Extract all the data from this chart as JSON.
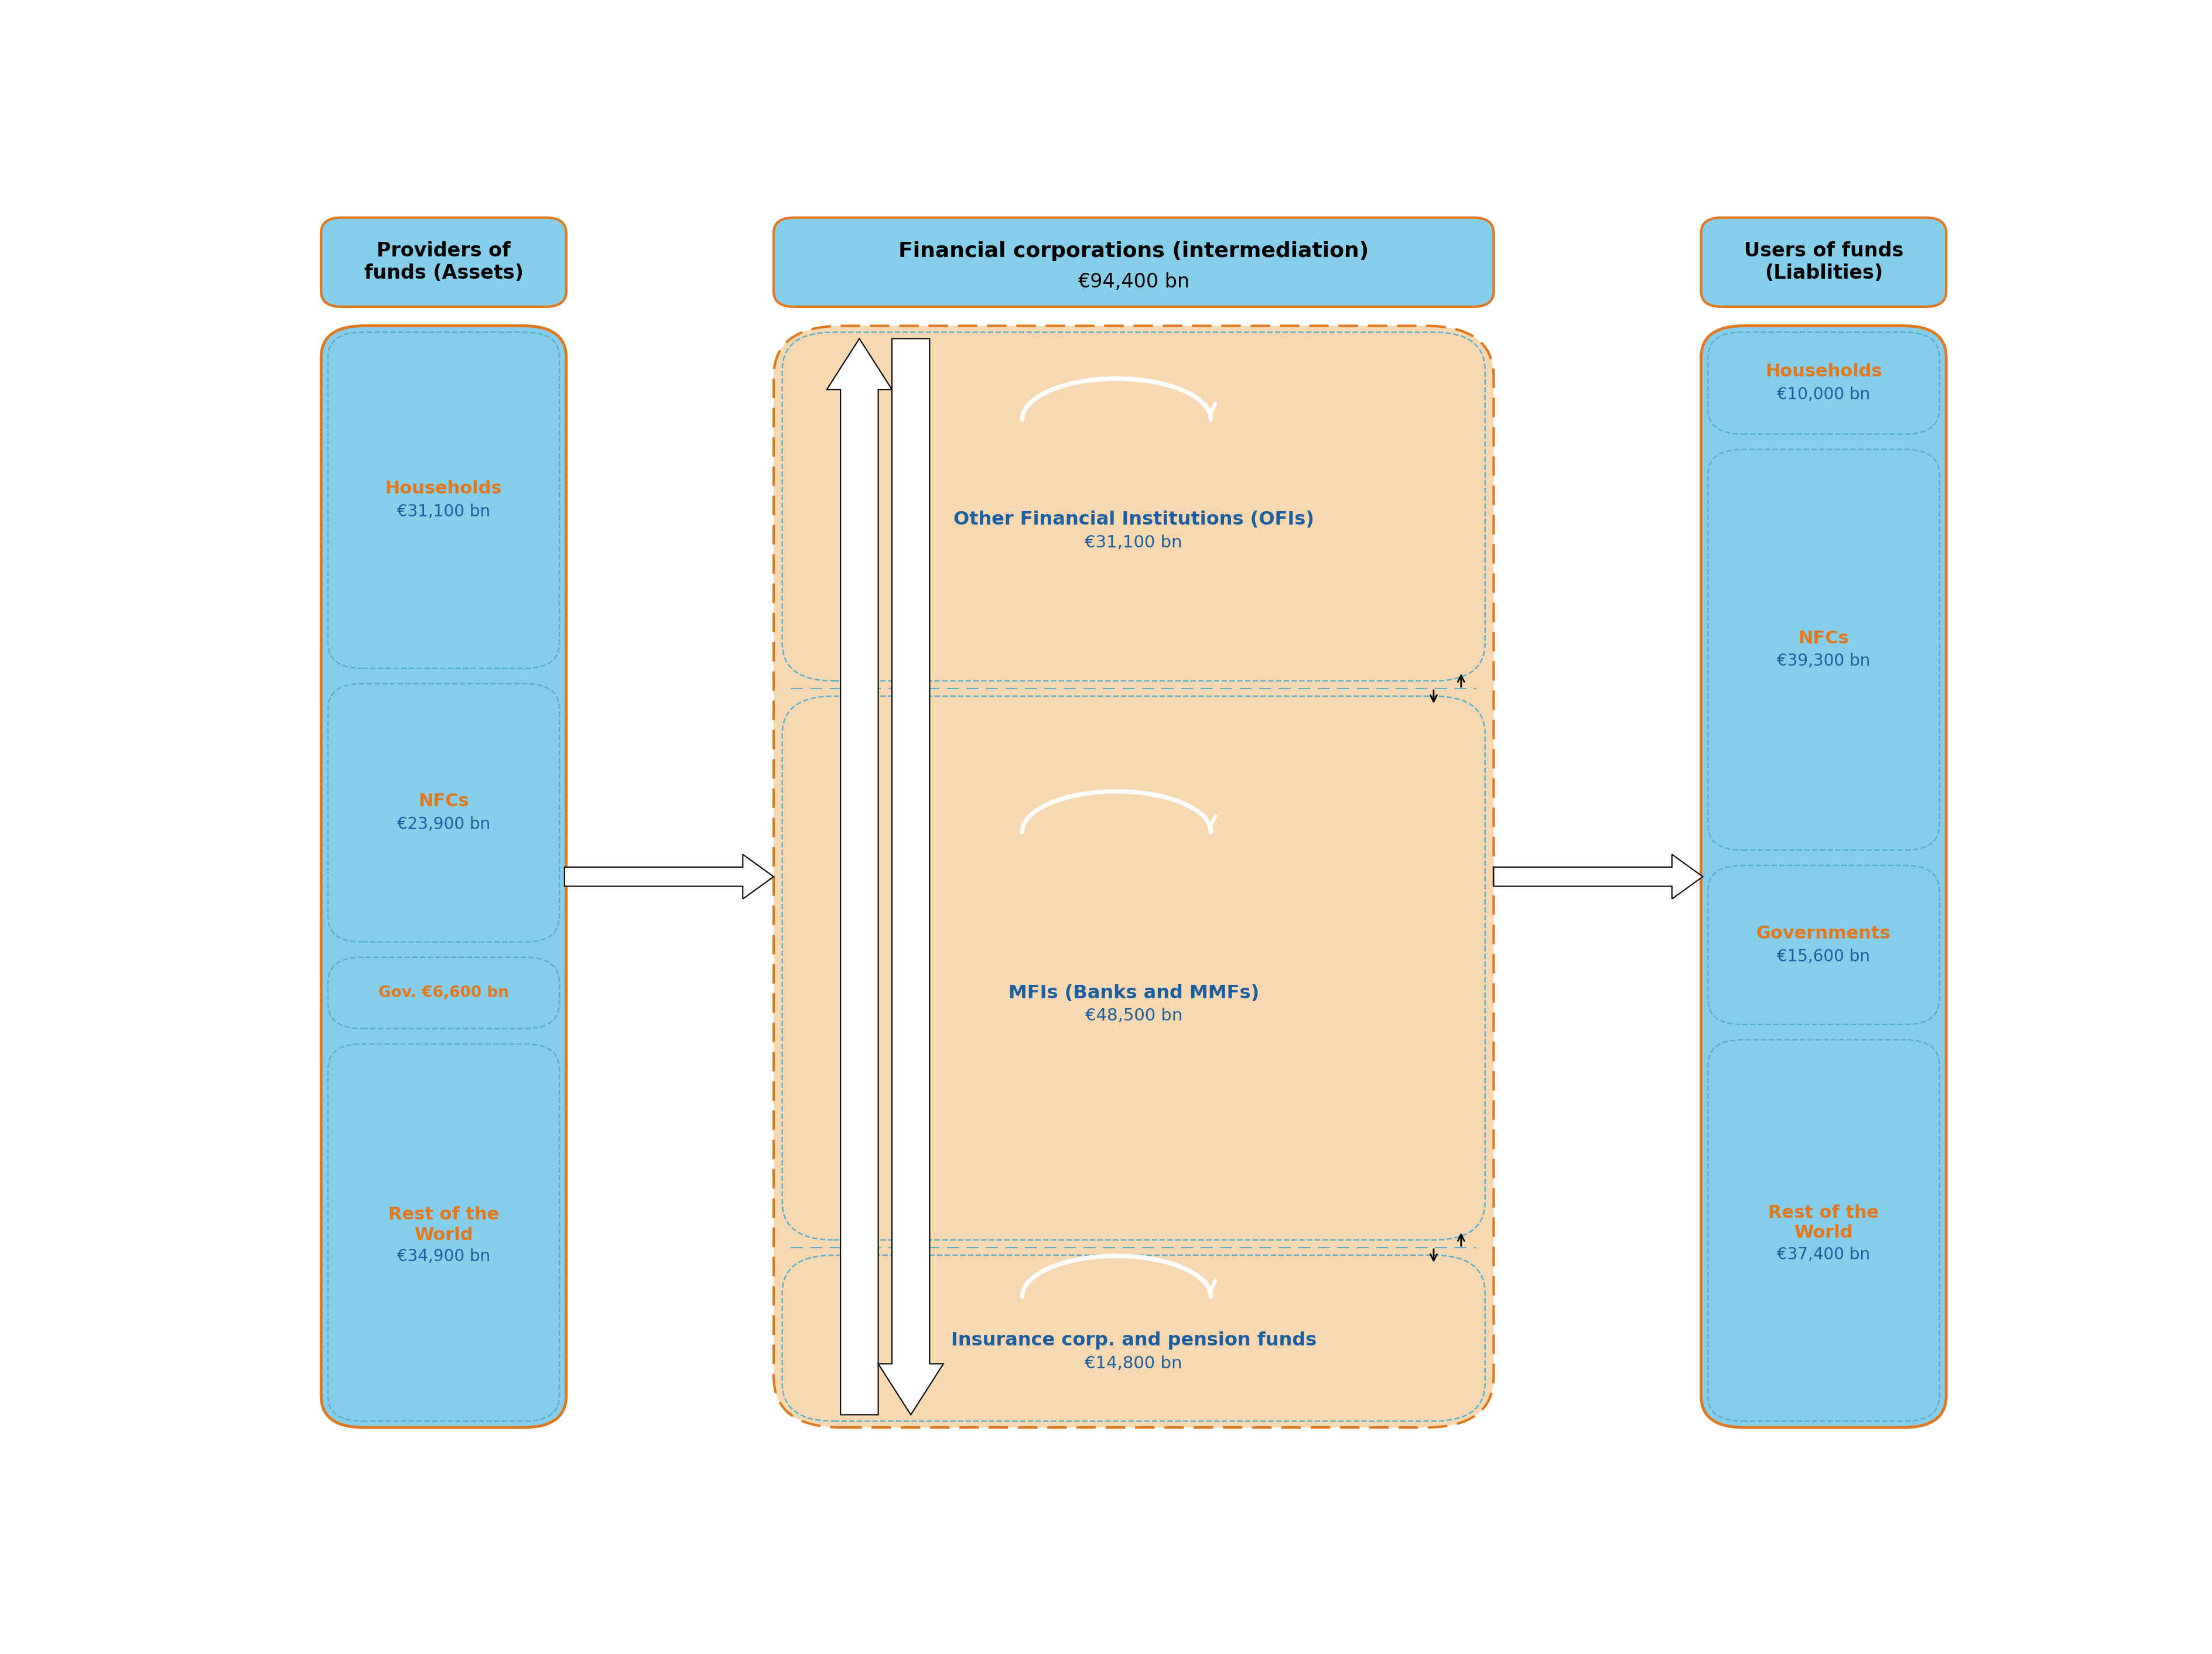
{
  "fig_width": 37.77,
  "fig_height": 28.25,
  "bg_color": "#ffffff",
  "title_left": "Providers of\nfunds (Assets)",
  "title_center_line1": "Financial corporations (intermediation)",
  "title_center_line2": "€94,400 bn",
  "title_right": "Users of funds\n(Liablities)",
  "left_sectors": [
    {
      "name": "Households",
      "value_str": "€31,100 bn",
      "value": 31100
    },
    {
      "name": "NFCs",
      "value_str": "€23,900 bn",
      "value": 23900
    },
    {
      "name": "Gov. €6,600 bn",
      "value_str": "",
      "value": 6600
    },
    {
      "name": "Rest of the\nWorld",
      "value_str": "€34,900 bn",
      "value": 34900
    }
  ],
  "right_sectors": [
    {
      "name": "Households",
      "value_str": "€10,000 bn",
      "value": 10000
    },
    {
      "name": "NFCs",
      "value_str": "€39,300 bn",
      "value": 39300
    },
    {
      "name": "Governments",
      "value_str": "€15,600 bn",
      "value": 15600
    },
    {
      "name": "Rest of the\nWorld",
      "value_str": "€37,400 bn",
      "value": 37400
    }
  ],
  "center_sectors": [
    {
      "name": "Other Financial Institutions (OFIs)",
      "value_str": "€31,100 bn",
      "value": 31100
    },
    {
      "name": "MFIs (Banks and MMFs)",
      "value_str": "€48,500 bn",
      "value": 48500
    },
    {
      "name": "Insurance corp. and pension funds",
      "value_str": "€14,800 bn",
      "value": 14800
    }
  ],
  "orange": "#E07820",
  "blue": "#1B5FA0",
  "lblue": "#87CEEB",
  "peach": "#F8D8B0",
  "dcyan": "#5AAFCC",
  "white": "#FFFFFF",
  "black": "#000000"
}
